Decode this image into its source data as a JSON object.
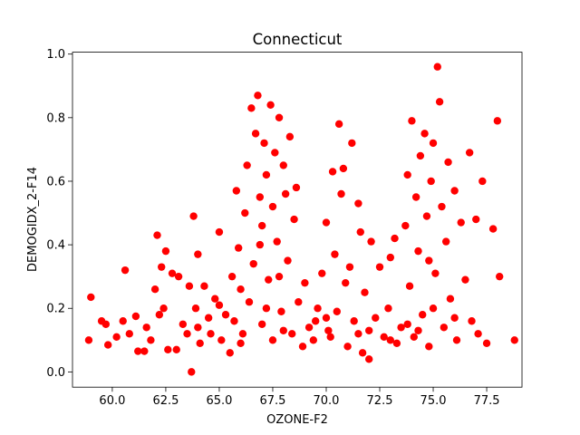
{
  "chart_data": {
    "type": "scatter",
    "title": "Connecticut",
    "x_label": "OZONE-F2",
    "y_label": "DEMOGIDX_2-F14",
    "color": "#ff0000",
    "xlim": [
      58.14,
      79.15
    ],
    "ylim": [
      -0.048,
      1.006
    ],
    "xticks": [
      {
        "value": 60,
        "label": "60.0"
      },
      62.5,
      {
        "value": 65,
        "label": "65.0"
      },
      67.5,
      {
        "value": 70,
        "label": "70.0"
      },
      72.5,
      {
        "value": 75,
        "label": "75.0"
      },
      77.5
    ],
    "yticks": [
      {
        "value": 0,
        "label": "0.0"
      },
      0.2,
      0.4,
      0.6,
      0.8,
      {
        "value": 1,
        "label": "1.0"
      }
    ],
    "x": [
      58.9,
      59.0,
      59.5,
      59.7,
      59.8,
      60.2,
      60.5,
      60.6,
      60.8,
      61.1,
      61.2,
      61.5,
      61.6,
      61.8,
      62.0,
      62.1,
      62.2,
      62.3,
      62.4,
      62.5,
      62.6,
      62.8,
      63.0,
      63.1,
      63.3,
      63.5,
      63.6,
      63.7,
      63.8,
      63.9,
      64.0,
      64.1,
      64.3,
      64.5,
      64.6,
      64.8,
      65.0,
      65.1,
      65.3,
      65.5,
      65.6,
      65.7,
      65.8,
      65.9,
      66.0,
      66.1,
      66.2,
      66.3,
      66.4,
      66.5,
      66.6,
      66.7,
      66.8,
      66.9,
      67.0,
      67.0,
      67.1,
      67.2,
      67.3,
      67.4,
      67.5,
      67.5,
      67.6,
      67.7,
      67.8,
      67.9,
      68.0,
      68.1,
      68.2,
      68.3,
      68.4,
      68.5,
      68.6,
      68.7,
      68.9,
      69.0,
      69.2,
      69.4,
      69.6,
      69.8,
      70.0,
      70.1,
      70.2,
      70.3,
      70.4,
      70.5,
      70.6,
      70.7,
      70.8,
      70.9,
      71.0,
      71.1,
      71.2,
      71.3,
      71.5,
      71.6,
      71.7,
      71.8,
      72.0,
      72.1,
      72.3,
      72.5,
      72.7,
      72.9,
      73.0,
      73.2,
      73.3,
      73.5,
      73.7,
      73.8,
      73.9,
      74.0,
      74.1,
      74.2,
      74.3,
      74.4,
      74.5,
      74.6,
      74.7,
      74.8,
      74.9,
      75.0,
      75.1,
      75.2,
      75.3,
      75.4,
      75.5,
      75.6,
      75.7,
      75.8,
      76.0,
      76.1,
      76.3,
      76.5,
      76.7,
      76.8,
      77.0,
      77.1,
      77.3,
      77.5,
      77.8,
      78.0,
      78.1,
      78.8,
      68.0,
      67.2,
      66.0,
      74.3,
      75.0,
      73.0,
      70.0,
      71.5,
      69.5,
      65.0,
      64.0,
      72.0,
      76.0,
      73.8,
      67.8,
      74.8,
      66.9
    ],
    "values": [
      0.1,
      0.235,
      0.16,
      0.15,
      0.085,
      0.11,
      0.16,
      0.32,
      0.12,
      0.175,
      0.065,
      0.065,
      0.14,
      0.1,
      0.26,
      0.43,
      0.18,
      0.33,
      0.2,
      0.38,
      0.07,
      0.31,
      0.07,
      0.3,
      0.15,
      0.12,
      0.27,
      0.0,
      0.49,
      0.2,
      0.37,
      0.09,
      0.27,
      0.17,
      0.12,
      0.23,
      0.44,
      0.1,
      0.18,
      0.06,
      0.3,
      0.16,
      0.57,
      0.39,
      0.26,
      0.12,
      0.5,
      0.65,
      0.22,
      0.83,
      0.34,
      0.75,
      0.87,
      0.55,
      0.15,
      0.46,
      0.72,
      0.62,
      0.29,
      0.84,
      0.1,
      0.52,
      0.69,
      0.41,
      0.8,
      0.19,
      0.65,
      0.56,
      0.35,
      0.74,
      0.12,
      0.48,
      0.58,
      0.22,
      0.08,
      0.28,
      0.14,
      0.1,
      0.2,
      0.31,
      0.47,
      0.13,
      0.11,
      0.63,
      0.37,
      0.19,
      0.78,
      0.56,
      0.64,
      0.28,
      0.08,
      0.33,
      0.72,
      0.16,
      0.53,
      0.44,
      0.06,
      0.25,
      0.04,
      0.41,
      0.17,
      0.33,
      0.11,
      0.2,
      0.36,
      0.42,
      0.09,
      0.14,
      0.46,
      0.62,
      0.27,
      0.79,
      0.11,
      0.55,
      0.38,
      0.68,
      0.18,
      0.75,
      0.49,
      0.08,
      0.6,
      0.72,
      0.31,
      0.96,
      0.85,
      0.52,
      0.14,
      0.41,
      0.66,
      0.23,
      0.57,
      0.1,
      0.47,
      0.29,
      0.69,
      0.16,
      0.48,
      0.12,
      0.6,
      0.09,
      0.45,
      0.79,
      0.3,
      0.1,
      0.13,
      0.2,
      0.09,
      0.13,
      0.2,
      0.1,
      0.17,
      0.12,
      0.16,
      0.21,
      0.14,
      0.13,
      0.17,
      0.15,
      0.3,
      0.35,
      0.4
    ]
  }
}
